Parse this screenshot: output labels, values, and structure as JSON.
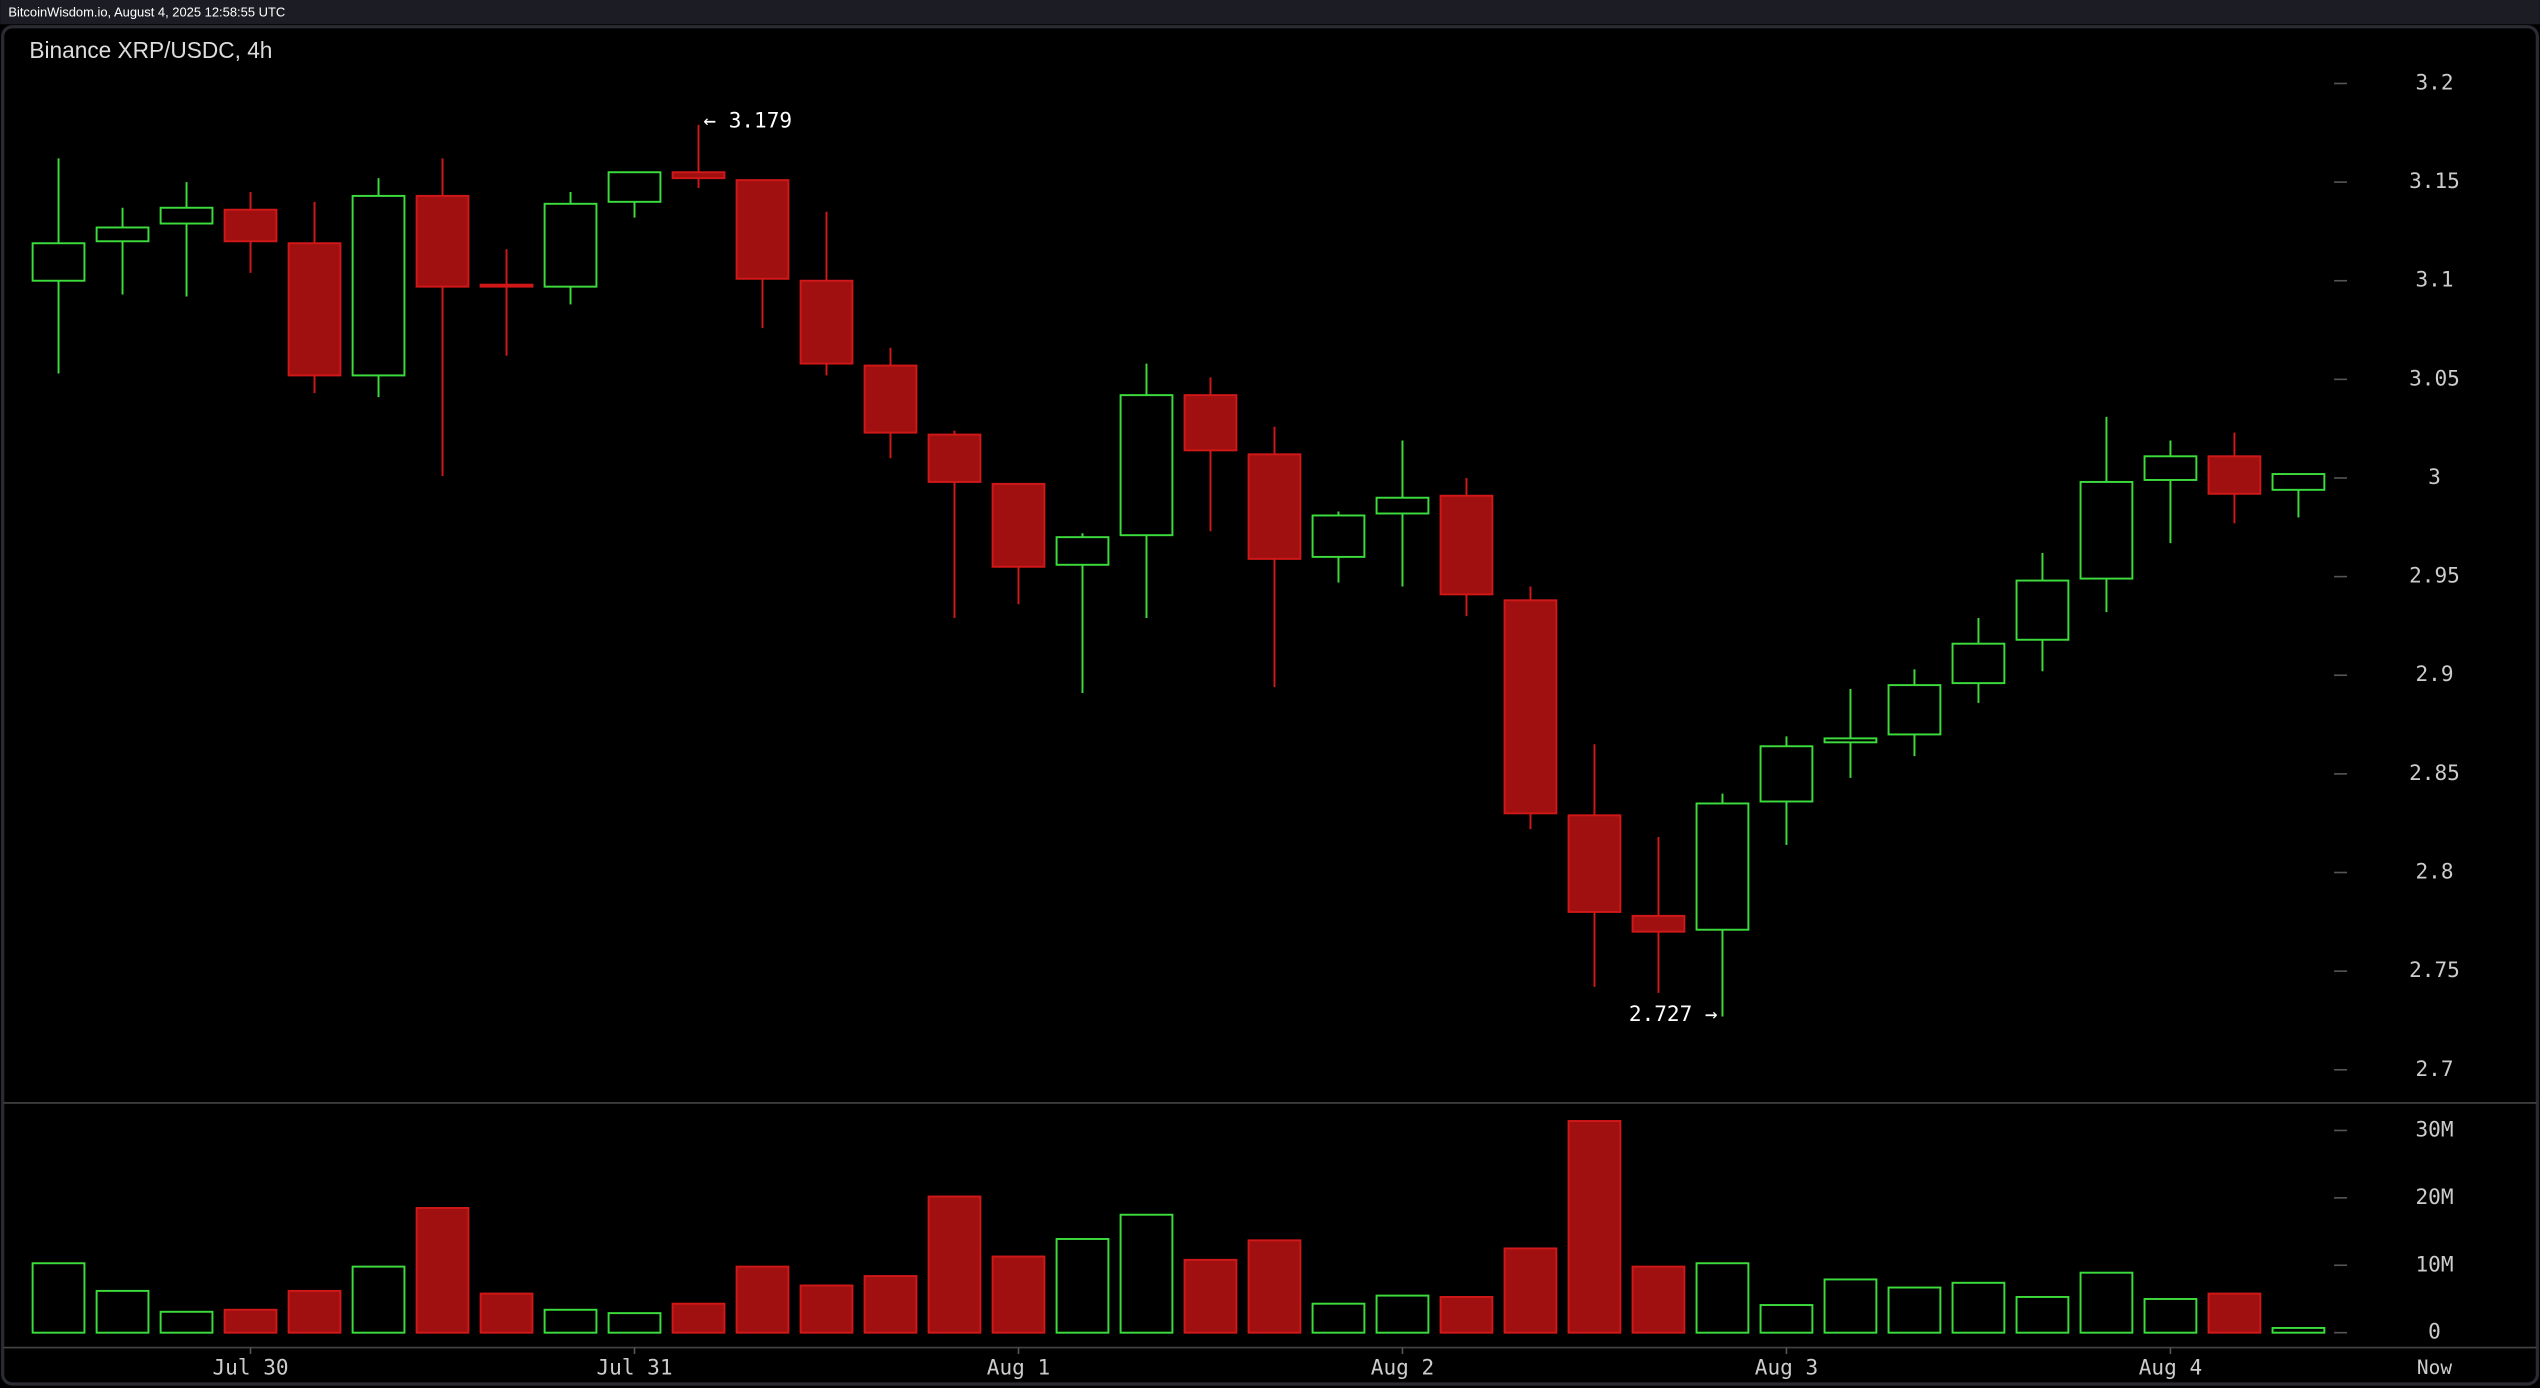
{
  "chart_data": {
    "type": "candlestick",
    "header": "BitcoinWisdom.io, August 4, 2025 12:58:55 UTC",
    "title": "Binance XRP/USDC, 4h",
    "categories": [
      null,
      null,
      null,
      "Jul 30",
      null,
      null,
      null,
      null,
      null,
      "Jul 31",
      null,
      null,
      null,
      null,
      null,
      "Aug 1",
      null,
      null,
      null,
      null,
      null,
      "Aug 2",
      null,
      null,
      null,
      null,
      null,
      "Aug 3",
      null,
      null,
      null,
      null,
      null,
      "Aug 4",
      null,
      null
    ],
    "now_label": "Now",
    "open": [
      3.1,
      3.12,
      3.129,
      3.136,
      3.119,
      3.052,
      3.143,
      3.098,
      3.097,
      3.14,
      3.155,
      3.151,
      3.1,
      3.057,
      3.022,
      2.997,
      2.956,
      2.971,
      3.042,
      3.012,
      2.96,
      2.982,
      2.991,
      2.938,
      2.829,
      2.778,
      2.771,
      2.836,
      2.866,
      2.87,
      2.896,
      2.918,
      2.949,
      2.999,
      3.011,
      2.994
    ],
    "high": [
      3.162,
      3.137,
      3.15,
      3.145,
      3.14,
      3.152,
      3.162,
      3.116,
      3.145,
      3.155,
      3.179,
      3.151,
      3.135,
      3.066,
      3.024,
      2.997,
      2.972,
      3.058,
      3.051,
      3.026,
      2.983,
      3.019,
      3.0,
      2.945,
      2.865,
      2.818,
      2.84,
      2.869,
      2.893,
      2.903,
      2.929,
      2.962,
      3.031,
      3.019,
      3.023,
      3.002
    ],
    "low": [
      3.053,
      3.093,
      3.092,
      3.104,
      3.043,
      3.041,
      3.001,
      3.062,
      3.088,
      3.132,
      3.147,
      3.076,
      3.052,
      3.01,
      2.929,
      2.936,
      2.891,
      2.929,
      2.973,
      2.894,
      2.947,
      2.945,
      2.93,
      2.822,
      2.742,
      2.739,
      2.727,
      2.814,
      2.848,
      2.859,
      2.886,
      2.902,
      2.932,
      2.967,
      2.977,
      2.98
    ],
    "close": [
      3.119,
      3.127,
      3.137,
      3.12,
      3.052,
      3.143,
      3.097,
      3.097,
      3.139,
      3.155,
      3.152,
      3.101,
      3.058,
      3.023,
      2.998,
      2.955,
      2.97,
      3.042,
      3.014,
      2.959,
      2.981,
      2.99,
      2.941,
      2.83,
      2.78,
      2.77,
      2.835,
      2.864,
      2.868,
      2.895,
      2.916,
      2.948,
      2.998,
      3.011,
      2.992,
      3.002
    ],
    "volume": [
      10.3,
      6.2,
      3.1,
      3.4,
      6.2,
      9.8,
      18.5,
      5.8,
      3.4,
      2.9,
      4.3,
      9.8,
      7.0,
      8.4,
      20.2,
      11.3,
      13.9,
      17.5,
      10.8,
      13.7,
      4.3,
      5.5,
      5.3,
      12.5,
      31.4,
      9.8,
      10.3,
      4.1,
      7.9,
      6.7,
      7.4,
      5.3,
      8.9,
      5.0,
      5.8,
      0.7
    ],
    "ylim": [
      2.684,
      3.23
    ],
    "yticks": [
      2.7,
      2.75,
      2.8,
      2.85,
      2.9,
      2.95,
      3,
      3.05,
      3.1,
      3.15,
      3.2
    ],
    "volume_ylim": [
      -2.2,
      33.6
    ],
    "volume_yticks": [
      0,
      {
        "value": 10,
        "label": "10M"
      },
      {
        "value": 20,
        "label": "20M"
      },
      {
        "value": 30,
        "label": "30M"
      }
    ],
    "annotations": [
      {
        "text": "← 3.179",
        "index": 10,
        "at": "high"
      },
      {
        "text": "2.727 →",
        "index": 26,
        "at": "low"
      }
    ],
    "up_color": "#3ddc3d",
    "down_color": "#a01010",
    "down_stroke": "#d01818"
  }
}
